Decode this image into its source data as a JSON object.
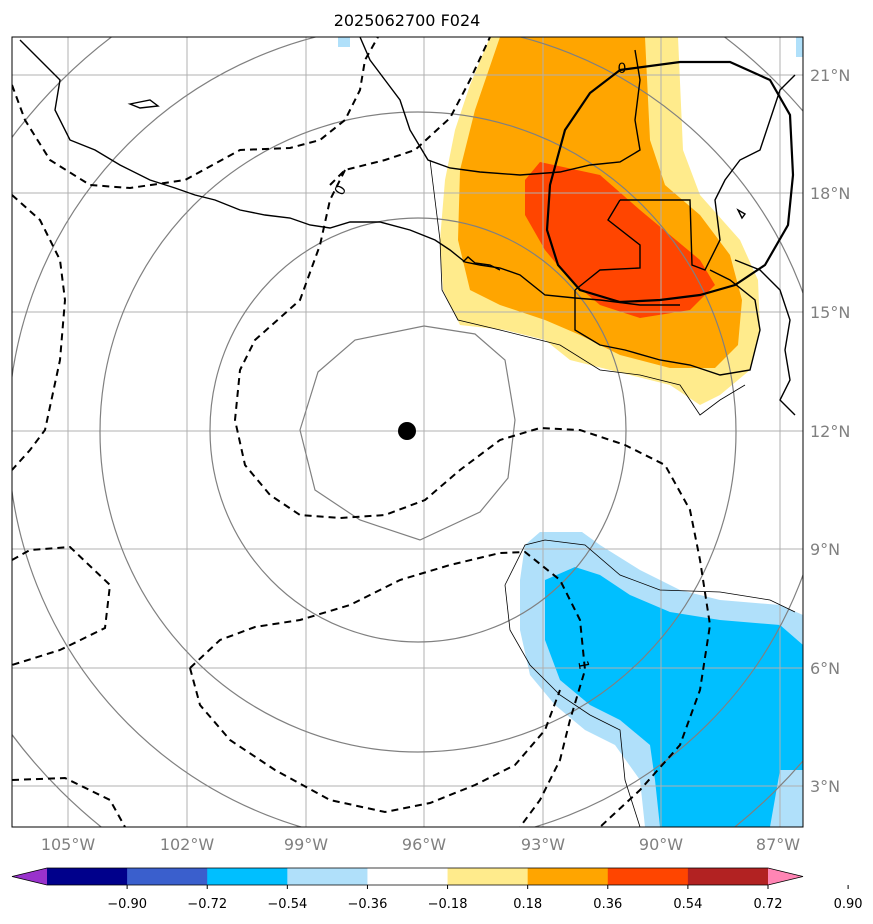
{
  "title": "2025062700 F024",
  "longitude_labels": [
    "105°W",
    "102°W",
    "99°W",
    "96°W",
    "93°W",
    "90°W",
    "87°W"
  ],
  "latitude_labels": [
    "21°N",
    "18°N",
    "15°N",
    "12°N",
    "9°N",
    "6°N",
    "3°N"
  ],
  "colorbar": {
    "tick_labels": [
      "−0.90",
      "−0.72",
      "−0.54",
      "−0.36",
      "−0.18",
      "0.18",
      "0.36",
      "0.54",
      "0.72",
      "0.90"
    ],
    "colors": [
      "#9932cc",
      "#00008b",
      "#3a5fcd",
      "#00bfff",
      "#b0e0fa",
      "#ffffff",
      "#ffeb8c",
      "#ffa500",
      "#ff4500",
      "#b22222",
      "#ff85b4"
    ]
  },
  "contour_labels": [
    "0",
    "0",
    "1"
  ],
  "center_marker": {
    "lon": -96.4,
    "lat": 12.0
  },
  "colors": {
    "light_yellow": "#ffeb8c",
    "orange": "#ffa500",
    "red_orange": "#ff4500",
    "light_blue": "#b0e0fa",
    "deep_sky_blue": "#00bfff",
    "grid": "#b0b0b0",
    "range_rings": "#808080"
  }
}
